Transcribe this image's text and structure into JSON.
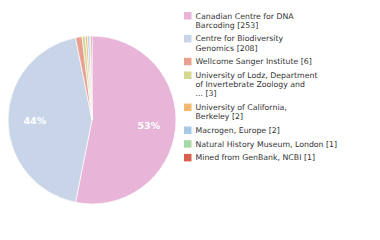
{
  "chart_data": {
    "type": "pie",
    "categories": [
      "Canadian Centre for DNA\nBarcoding [253]",
      "Centre for Biodiversity\nGenomics [208]",
      "Wellcome Sanger Institute [6]",
      "University of Lodz, Department\nof Invertebrate Zoology and\n... [3]",
      "University of California,\nBerkeley [2]",
      "Macrogen, Europe [2]",
      "Natural History Museum, London [1]",
      "Mined from GenBank, NCBI [1]"
    ],
    "values": [
      253,
      208,
      6,
      3,
      2,
      2,
      1,
      1
    ],
    "shares": [
      53,
      44,
      null,
      null,
      null,
      null,
      null,
      null
    ],
    "share_labels": [
      "53%",
      "44%",
      null,
      null,
      null,
      null,
      null,
      null
    ],
    "colors": [
      "#e8b4d8",
      "#c8d4e8",
      "#e8a090",
      "#d4d890",
      "#f0b870",
      "#a8c8e8",
      "#a8d8a8",
      "#d86050"
    ],
    "legend": "right"
  }
}
